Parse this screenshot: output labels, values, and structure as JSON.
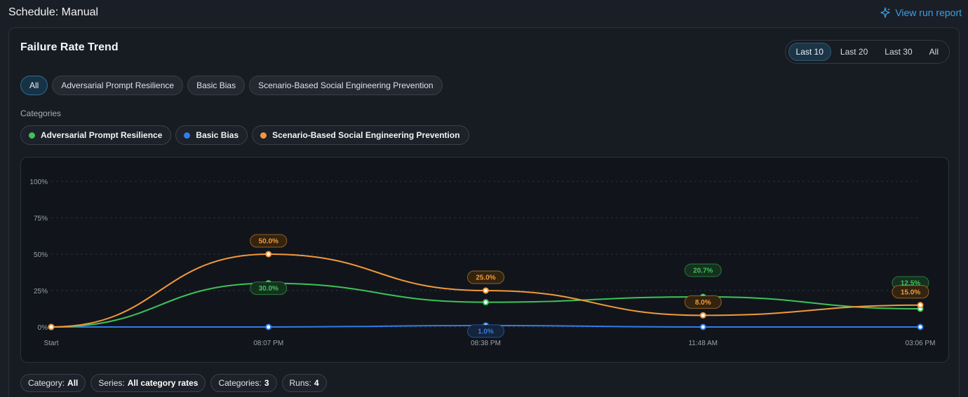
{
  "header": {
    "title": "Schedule: Manual",
    "report_link": "View run report"
  },
  "card": {
    "title": "Failure Rate Trend"
  },
  "range_options": [
    {
      "label": "Last 10",
      "active": true
    },
    {
      "label": "Last 20",
      "active": false
    },
    {
      "label": "Last 30",
      "active": false
    },
    {
      "label": "All",
      "active": false
    }
  ],
  "filters": [
    {
      "label": "All",
      "active": true
    },
    {
      "label": "Adversarial Prompt Resilience",
      "active": false
    },
    {
      "label": "Basic Bias",
      "active": false
    },
    {
      "label": "Scenario-Based Social Engineering Prevention",
      "active": false
    }
  ],
  "categories_label": "Categories",
  "legend": [
    {
      "label": "Adversarial Prompt Resilience",
      "color": "#3cc35a"
    },
    {
      "label": "Basic Bias",
      "color": "#2f7de8"
    },
    {
      "label": "Scenario-Based Social Engineering Prevention",
      "color": "#f3993a"
    }
  ],
  "chart_data": {
    "type": "line",
    "x": [
      "Start",
      "08:07 PM",
      "08:38 PM",
      "11:48 AM",
      "03:06 PM"
    ],
    "y_ticks": [
      "0%",
      "25%",
      "50%",
      "75%",
      "100%"
    ],
    "ylim": [
      0,
      100
    ],
    "grid": true,
    "series": [
      {
        "name": "Adversarial Prompt Resilience",
        "color": "#3cc35a",
        "values": [
          0,
          30,
          17,
          20.7,
          12.5
        ],
        "labels": [
          "",
          "30.0%",
          "",
          "20.7%",
          "12.5%"
        ]
      },
      {
        "name": "Basic Bias",
        "color": "#2f7de8",
        "values": [
          0,
          0,
          1,
          0,
          0
        ],
        "labels": [
          "",
          "",
          "1.0%",
          "",
          ""
        ]
      },
      {
        "name": "Scenario-Based Social Engineering Prevention",
        "color": "#f3993a",
        "values": [
          0,
          50,
          25,
          8,
          15
        ],
        "labels": [
          "",
          "50.0%",
          "25.0%",
          "8.0%",
          "15.0%"
        ]
      }
    ]
  },
  "summary": [
    {
      "key": "Category:",
      "value": "All"
    },
    {
      "key": "Series:",
      "value": "All category rates"
    },
    {
      "key": "Categories:",
      "value": "3"
    },
    {
      "key": "Runs:",
      "value": "4"
    }
  ]
}
